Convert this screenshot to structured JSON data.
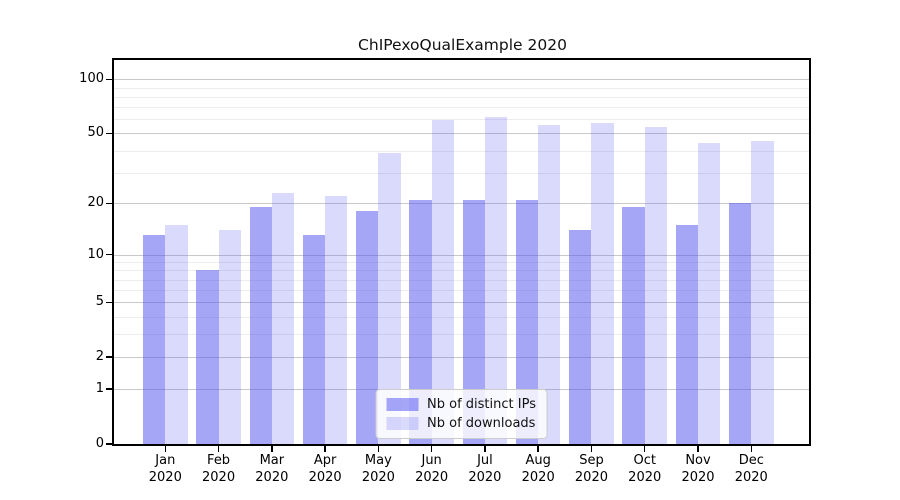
{
  "chart_data": {
    "type": "bar",
    "title": "ChIPexoQualExample 2020",
    "categories": [
      "Jan",
      "Feb",
      "Mar",
      "Apr",
      "May",
      "Jun",
      "Jul",
      "Aug",
      "Sep",
      "Oct",
      "Nov",
      "Dec"
    ],
    "year_label": "2020",
    "series": [
      {
        "name": "Nb of distinct IPs",
        "color": "rgba(85,85,240,0.52)",
        "values": [
          13,
          8,
          19,
          13,
          18,
          21,
          21,
          21,
          14,
          19,
          15,
          20
        ]
      },
      {
        "name": "Nb of downloads",
        "color": "rgba(85,85,240,0.22)",
        "values": [
          15,
          14,
          23,
          22,
          39,
          59,
          62,
          56,
          57,
          54,
          44,
          45
        ]
      }
    ],
    "xlabel": "",
    "ylabel": "",
    "scale": "log1p",
    "ylim": [
      0,
      128
    ],
    "y_ticks": [
      100,
      50,
      20,
      10,
      5,
      2,
      1,
      0
    ],
    "y_minor_grid": [
      3,
      4,
      6,
      7,
      8,
      9,
      30,
      40,
      60,
      70,
      80,
      90
    ],
    "grid": true,
    "legend_position": "lower center",
    "colors": {
      "bar_dark": "rgba(85,85,240,0.52)",
      "bar_light": "rgba(85,85,240,0.22)",
      "grid_major": "#c9c9c9",
      "grid_minor": "#ececec",
      "spine": "#000000"
    }
  }
}
